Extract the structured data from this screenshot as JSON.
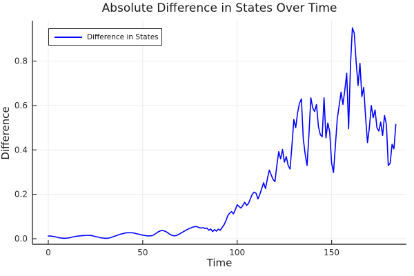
{
  "title": "Absolute Difference in States Over Time",
  "legend": {
    "label": "Difference in States"
  },
  "axes": {
    "xlabel": "Time",
    "ylabel": "Difference"
  },
  "colors": {
    "line": "#0000ff",
    "grid": "#ececec",
    "spine": "#303030",
    "tick": "#303030",
    "text": "#1a1a1a",
    "background": "#ffffff"
  },
  "chart_data": {
    "type": "line",
    "title": "Absolute Difference in States Over Time",
    "xlabel": "Time",
    "ylabel": "Difference",
    "xlim": [
      -8.4,
      189.6
    ],
    "ylim": [
      -0.025,
      0.982
    ],
    "xtick_labels": [
      "0",
      "50",
      "100",
      "150"
    ],
    "xticks": [
      0,
      50,
      100,
      150
    ],
    "ytick_labels": [
      "0.0",
      "0.2",
      "0.4",
      "0.6",
      "0.8"
    ],
    "yticks": [
      0.0,
      0.2,
      0.4,
      0.6,
      0.8
    ],
    "grid": true,
    "legend_position": "top-left",
    "x_start": 0,
    "x_step": 1,
    "series": [
      {
        "name": "Difference in States",
        "color": "#0000ff",
        "y": [
          0.012,
          0.012,
          0.011,
          0.01,
          0.008,
          0.006,
          0.004,
          0.003,
          0.002,
          0.002,
          0.003,
          0.004,
          0.006,
          0.008,
          0.01,
          0.011,
          0.012,
          0.013,
          0.014,
          0.014,
          0.015,
          0.015,
          0.015,
          0.014,
          0.012,
          0.01,
          0.008,
          0.006,
          0.004,
          0.003,
          0.002,
          0.002,
          0.003,
          0.005,
          0.008,
          0.011,
          0.014,
          0.017,
          0.02,
          0.022,
          0.024,
          0.026,
          0.027,
          0.027,
          0.027,
          0.026,
          0.024,
          0.022,
          0.02,
          0.018,
          0.016,
          0.015,
          0.013,
          0.013,
          0.013,
          0.014,
          0.018,
          0.024,
          0.03,
          0.034,
          0.037,
          0.036,
          0.033,
          0.028,
          0.022,
          0.017,
          0.014,
          0.013,
          0.015,
          0.019,
          0.024,
          0.029,
          0.034,
          0.039,
          0.043,
          0.047,
          0.051,
          0.053,
          0.055,
          0.053,
          0.05,
          0.048,
          0.05,
          0.046,
          0.048,
          0.038,
          0.044,
          0.032,
          0.041,
          0.034,
          0.043,
          0.038,
          0.05,
          0.062,
          0.08,
          0.103,
          0.115,
          0.122,
          0.112,
          0.13,
          0.153,
          0.145,
          0.138,
          0.15,
          0.164,
          0.15,
          0.159,
          0.18,
          0.2,
          0.21,
          0.205,
          0.179,
          0.2,
          0.226,
          0.252,
          0.226,
          0.27,
          0.309,
          0.288,
          0.267,
          0.257,
          0.33,
          0.392,
          0.36,
          0.402,
          0.345,
          0.37,
          0.33,
          0.314,
          0.42,
          0.537,
          0.5,
          0.568,
          0.61,
          0.63,
          0.45,
          0.381,
          0.33,
          0.47,
          0.635,
          0.589,
          0.573,
          0.604,
          0.506,
          0.469,
          0.459,
          0.635,
          0.454,
          0.521,
          0.48,
          0.34,
          0.298,
          0.42,
          0.54,
          0.6,
          0.66,
          0.605,
          0.67,
          0.745,
          0.495,
          0.785,
          0.95,
          0.925,
          0.795,
          0.69,
          0.79,
          0.64,
          0.682,
          0.547,
          0.433,
          0.5,
          0.6,
          0.545,
          0.58,
          0.5,
          0.485,
          0.525,
          0.465,
          0.555,
          0.515,
          0.33,
          0.34,
          0.425,
          0.405,
          0.515
        ]
      }
    ]
  }
}
